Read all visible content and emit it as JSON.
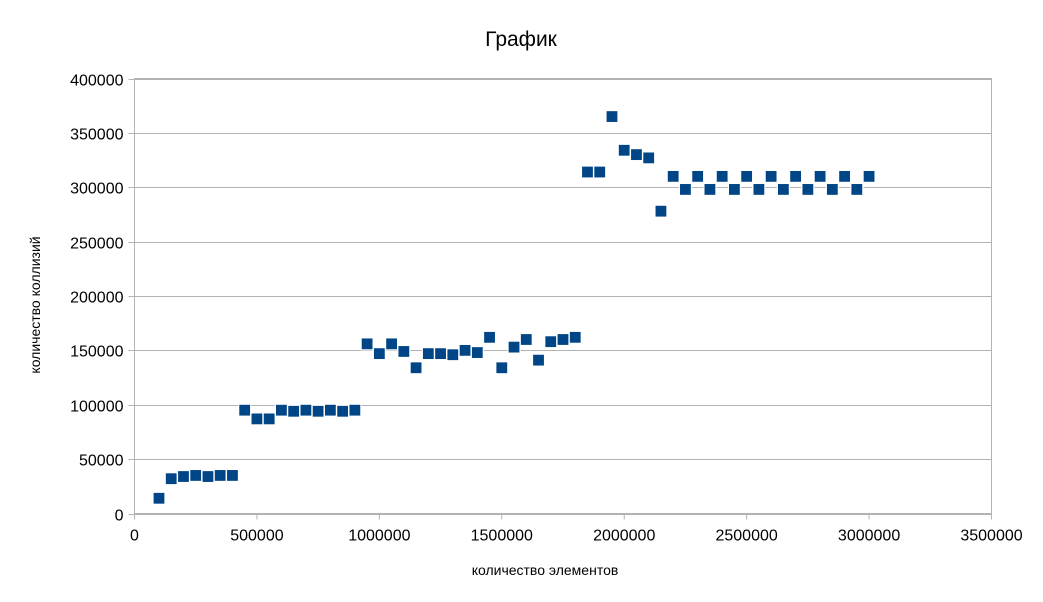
{
  "chart_data": {
    "type": "scatter",
    "title": "График",
    "xlabel": "количество элементов",
    "ylabel": "количество коллизий",
    "xlim": [
      0,
      3500000
    ],
    "ylim": [
      0,
      400000
    ],
    "xticks": [
      0,
      500000,
      1000000,
      1500000,
      2000000,
      2500000,
      3000000,
      3500000
    ],
    "yticks": [
      0,
      50000,
      100000,
      150000,
      200000,
      250000,
      300000,
      350000,
      400000
    ],
    "grid": "horizontal",
    "marker": "square",
    "color": "#004586",
    "series": [
      {
        "x": [
          100000,
          150000,
          200000,
          250000,
          300000,
          350000,
          400000,
          450000,
          500000,
          550000,
          600000,
          650000,
          700000,
          750000,
          800000,
          850000,
          900000,
          950000,
          1000000,
          1050000,
          1100000,
          1150000,
          1200000,
          1250000,
          1300000,
          1350000,
          1400000,
          1450000,
          1500000,
          1550000,
          1600000,
          1650000,
          1700000,
          1750000,
          1800000,
          1850000,
          1900000,
          1950000,
          2000000,
          2050000,
          2100000,
          2150000,
          2200000,
          2250000,
          2300000,
          2350000,
          2400000,
          2450000,
          2500000,
          2550000,
          2600000,
          2650000,
          2700000,
          2750000,
          2800000,
          2850000,
          2900000,
          2950000,
          3000000
        ],
        "y": [
          14000,
          32000,
          34000,
          35000,
          34000,
          35000,
          35000,
          95000,
          87000,
          87000,
          95000,
          94000,
          95000,
          94000,
          95000,
          94000,
          95000,
          156000,
          147000,
          156000,
          149000,
          134000,
          147000,
          147000,
          146000,
          150000,
          148000,
          162000,
          134000,
          153000,
          160000,
          141000,
          158000,
          160000,
          162000,
          314000,
          314000,
          365000,
          334000,
          330000,
          327000,
          278000,
          310000,
          298000,
          310000,
          298000,
          310000,
          298000,
          310000,
          298000,
          310000,
          298000,
          310000,
          298000,
          310000,
          298000,
          310000,
          298000,
          310000
        ]
      }
    ]
  }
}
